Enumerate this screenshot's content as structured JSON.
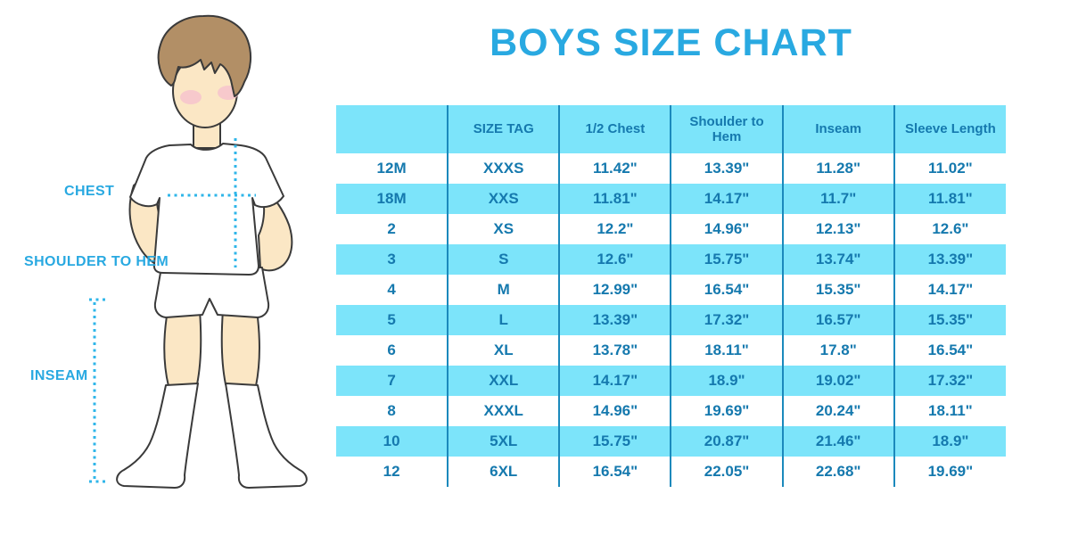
{
  "title": "BOYS SIZE CHART",
  "figure": {
    "chest_label": "CHEST",
    "shoulder_to_hem_label": "SHOULDER TO HEM",
    "inseam_label": "INSEAM"
  },
  "colors": {
    "accent_blue": "#29A9E1",
    "table_cyan": "#7CE4FA",
    "table_text": "#1579AE",
    "table_border": "#1B89BC",
    "dotted_line": "#2FB6E9",
    "skin": "#FBE7C5",
    "hair": "#B28F66",
    "cheek": "#F6C3CC",
    "outline": "#3A3A3A"
  },
  "chart_data": {
    "type": "table",
    "title": "BOYS SIZE CHART",
    "columns": [
      "",
      "SIZE TAG",
      "1/2 Chest",
      "Shoulder to Hem",
      "Inseam",
      "Sleeve Length"
    ],
    "rows": [
      [
        "12M",
        "XXXS",
        "11.42\"",
        "13.39\"",
        "11.28\"",
        "11.02\""
      ],
      [
        "18M",
        "XXS",
        "11.81\"",
        "14.17\"",
        "11.7\"",
        "11.81\""
      ],
      [
        "2",
        "XS",
        "12.2\"",
        "14.96\"",
        "12.13\"",
        "12.6\""
      ],
      [
        "3",
        "S",
        "12.6\"",
        "15.75\"",
        "13.74\"",
        "13.39\""
      ],
      [
        "4",
        "M",
        "12.99\"",
        "16.54\"",
        "15.35\"",
        "14.17\""
      ],
      [
        "5",
        "L",
        "13.39\"",
        "17.32\"",
        "16.57\"",
        "15.35\""
      ],
      [
        "6",
        "XL",
        "13.78\"",
        "18.11\"",
        "17.8\"",
        "16.54\""
      ],
      [
        "7",
        "XXL",
        "14.17\"",
        "18.9\"",
        "19.02\"",
        "17.32\""
      ],
      [
        "8",
        "XXXL",
        "14.96\"",
        "19.69\"",
        "20.24\"",
        "18.11\""
      ],
      [
        "10",
        "5XL",
        "15.75\"",
        "20.87\"",
        "21.46\"",
        "18.9\""
      ],
      [
        "12",
        "6XL",
        "16.54\"",
        "22.05\"",
        "22.68\"",
        "19.69\""
      ]
    ]
  }
}
